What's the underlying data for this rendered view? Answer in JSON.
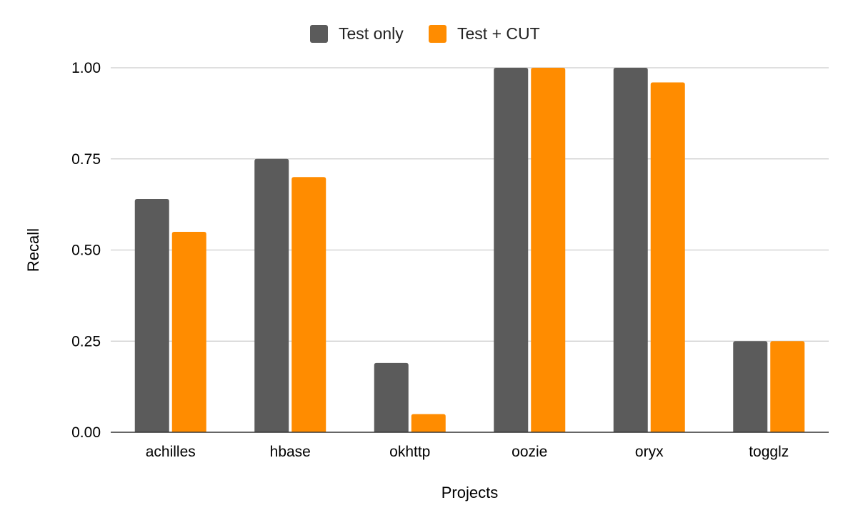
{
  "chart_data": {
    "type": "bar",
    "title": "",
    "xlabel": "Projects",
    "ylabel": "Recall",
    "categories": [
      "achilles",
      "hbase",
      "okhttp",
      "oozie",
      "oryx",
      "togglz"
    ],
    "series": [
      {
        "name": "Test only",
        "color": "#5b5b5b",
        "values": [
          0.64,
          0.75,
          0.19,
          1.0,
          1.0,
          0.25
        ]
      },
      {
        "name": "Test + CUT",
        "color": "#ff8c00",
        "values": [
          0.55,
          0.7,
          0.05,
          1.0,
          0.96,
          0.25
        ]
      }
    ],
    "ylim": [
      0,
      1
    ],
    "yticks": [
      "0.00",
      "0.25",
      "0.50",
      "0.75",
      "1.00"
    ],
    "grid": true,
    "legend_position": "top-center"
  }
}
